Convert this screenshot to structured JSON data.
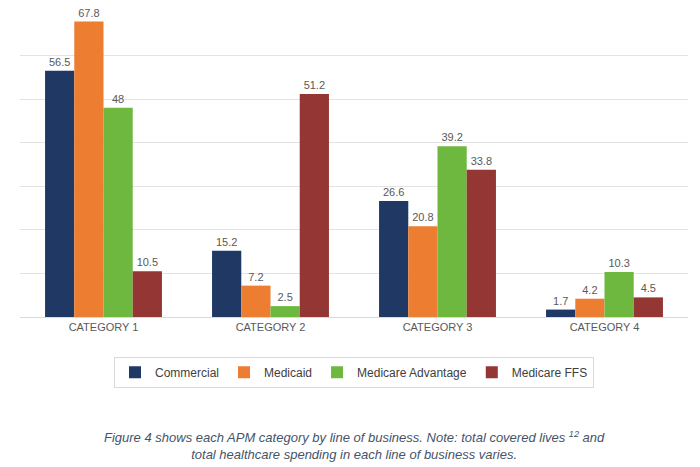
{
  "chart_data": {
    "type": "bar",
    "categories": [
      "CATEGORY 1",
      "CATEGORY 2",
      "CATEGORY 3",
      "CATEGORY 4"
    ],
    "series": [
      {
        "name": "Commercial",
        "color": "#203864",
        "values": [
          56.5,
          15.2,
          26.6,
          1.7
        ]
      },
      {
        "name": "Medicaid",
        "color": "#ed7d31",
        "values": [
          67.8,
          7.2,
          20.8,
          4.2
        ]
      },
      {
        "name": "Medicare Advantage",
        "color": "#6fb83f",
        "values": [
          48,
          2.5,
          39.2,
          10.3
        ]
      },
      {
        "name": "Medicare FFS",
        "color": "#943634",
        "values": [
          10.5,
          51.2,
          33.8,
          4.5
        ]
      }
    ],
    "ylim": [
      0,
      70
    ],
    "yticks": [
      0,
      10,
      20,
      30,
      40,
      50,
      60,
      70
    ],
    "grid": true,
    "legend": "bottom",
    "data_labels": true,
    "tick_labels": "x",
    "annotations": [
      {
        "text": "Figure 4 shows each APM category by line of business. Note: total covered lives",
        "superscript": "12",
        "text_after": "and"
      },
      {
        "text": "total healthcare spending in each line of business varies."
      }
    ]
  }
}
